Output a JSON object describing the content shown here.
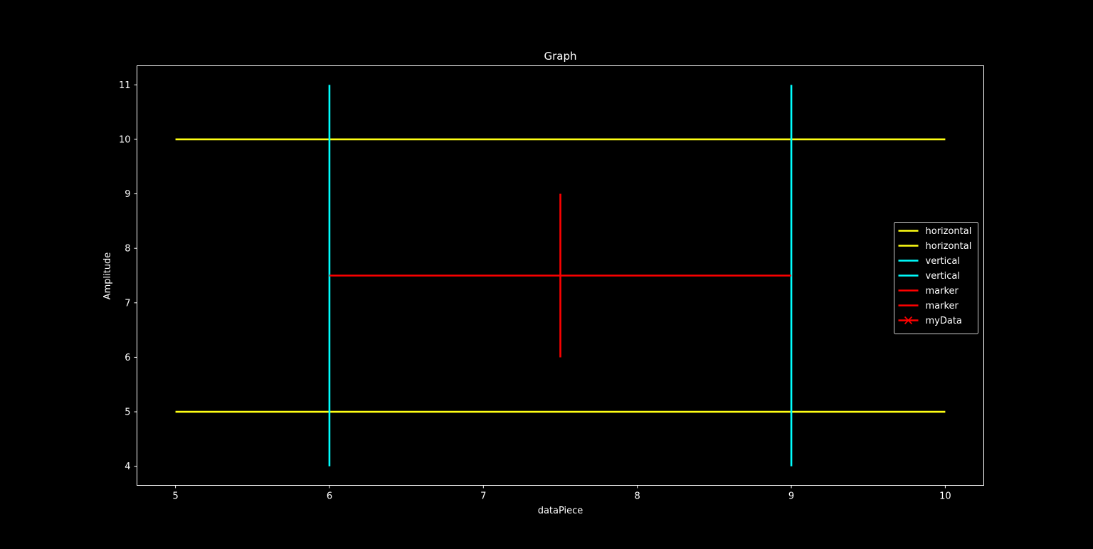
{
  "chart_data": {
    "type": "line",
    "title": "Graph",
    "xlabel": "dataPiece",
    "ylabel": "Amplitude",
    "xlim": [
      4.75,
      10.25
    ],
    "ylim": [
      3.65,
      11.35
    ],
    "xticks": [
      5,
      6,
      7,
      8,
      9,
      10
    ],
    "yticks": [
      4,
      5,
      6,
      7,
      8,
      9,
      10,
      11
    ],
    "grid": false,
    "legend_position": "center-right",
    "background": "#000000",
    "foreground": "#ffffff",
    "series": [
      {
        "name": "horizontal",
        "color": "#ffff14",
        "x": [
          5,
          10
        ],
        "y": [
          10,
          10
        ]
      },
      {
        "name": "horizontal",
        "color": "#ffff14",
        "x": [
          5,
          10
        ],
        "y": [
          5,
          5
        ]
      },
      {
        "name": "vertical",
        "color": "#00ffff",
        "x": [
          6,
          6
        ],
        "y": [
          4,
          11
        ]
      },
      {
        "name": "vertical",
        "color": "#00ffff",
        "x": [
          9,
          9
        ],
        "y": [
          4,
          11
        ]
      },
      {
        "name": "marker",
        "color": "#ff0000",
        "x": [
          6,
          9
        ],
        "y": [
          7.5,
          7.5
        ]
      },
      {
        "name": "marker",
        "color": "#ff0000",
        "x": [
          7.5,
          7.5
        ],
        "y": [
          6,
          9
        ]
      },
      {
        "name": "myData",
        "color": "#ff0000",
        "marker": "x",
        "x": [],
        "y": []
      }
    ]
  }
}
